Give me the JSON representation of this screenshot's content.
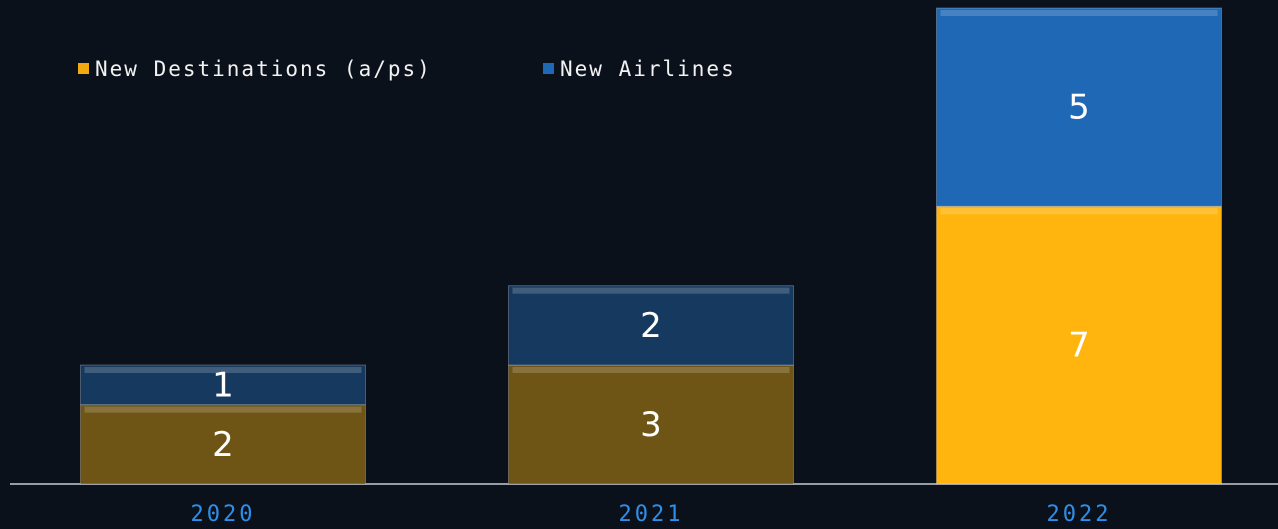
{
  "chart_data": {
    "type": "stacked_bar",
    "categories": [
      "2020",
      "2021",
      "2022"
    ],
    "series": [
      {
        "name": "New Destinations (a/ps)",
        "color": "#f2a90f",
        "colors": [
          "#6e5515",
          "#6e5515",
          "#ffb50d"
        ],
        "values": [
          2,
          3,
          7
        ]
      },
      {
        "name": "New Airlines",
        "color": "#1f68b5",
        "colors": [
          "#163a5f",
          "#163a5f",
          "#1f68b5"
        ],
        "values": [
          1,
          2,
          5
        ]
      }
    ],
    "ylim": [
      0,
      12
    ],
    "legend": "top-left"
  }
}
